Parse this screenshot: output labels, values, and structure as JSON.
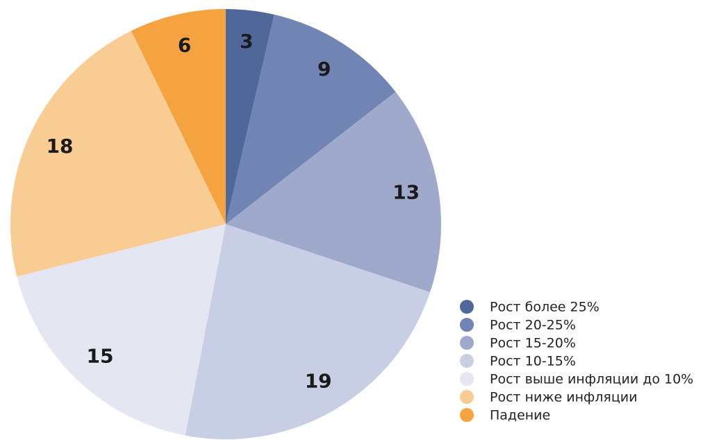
{
  "chart_data": {
    "type": "pie",
    "categories": [
      "Рост более 25%",
      "Рост 20-25%",
      "Рост 15-20%",
      "Рост 10-15%",
      "Рост выше инфляции до 10%",
      "Рост ниже инфляции",
      "Падение"
    ],
    "values": [
      3,
      9,
      13,
      19,
      15,
      18,
      6
    ],
    "colors": [
      "#4f6899",
      "#7085b3",
      "#9ea9cb",
      "#c8cee3",
      "#e4e7f2",
      "#f9cc94",
      "#f4a340"
    ],
    "legend": "lower right"
  }
}
